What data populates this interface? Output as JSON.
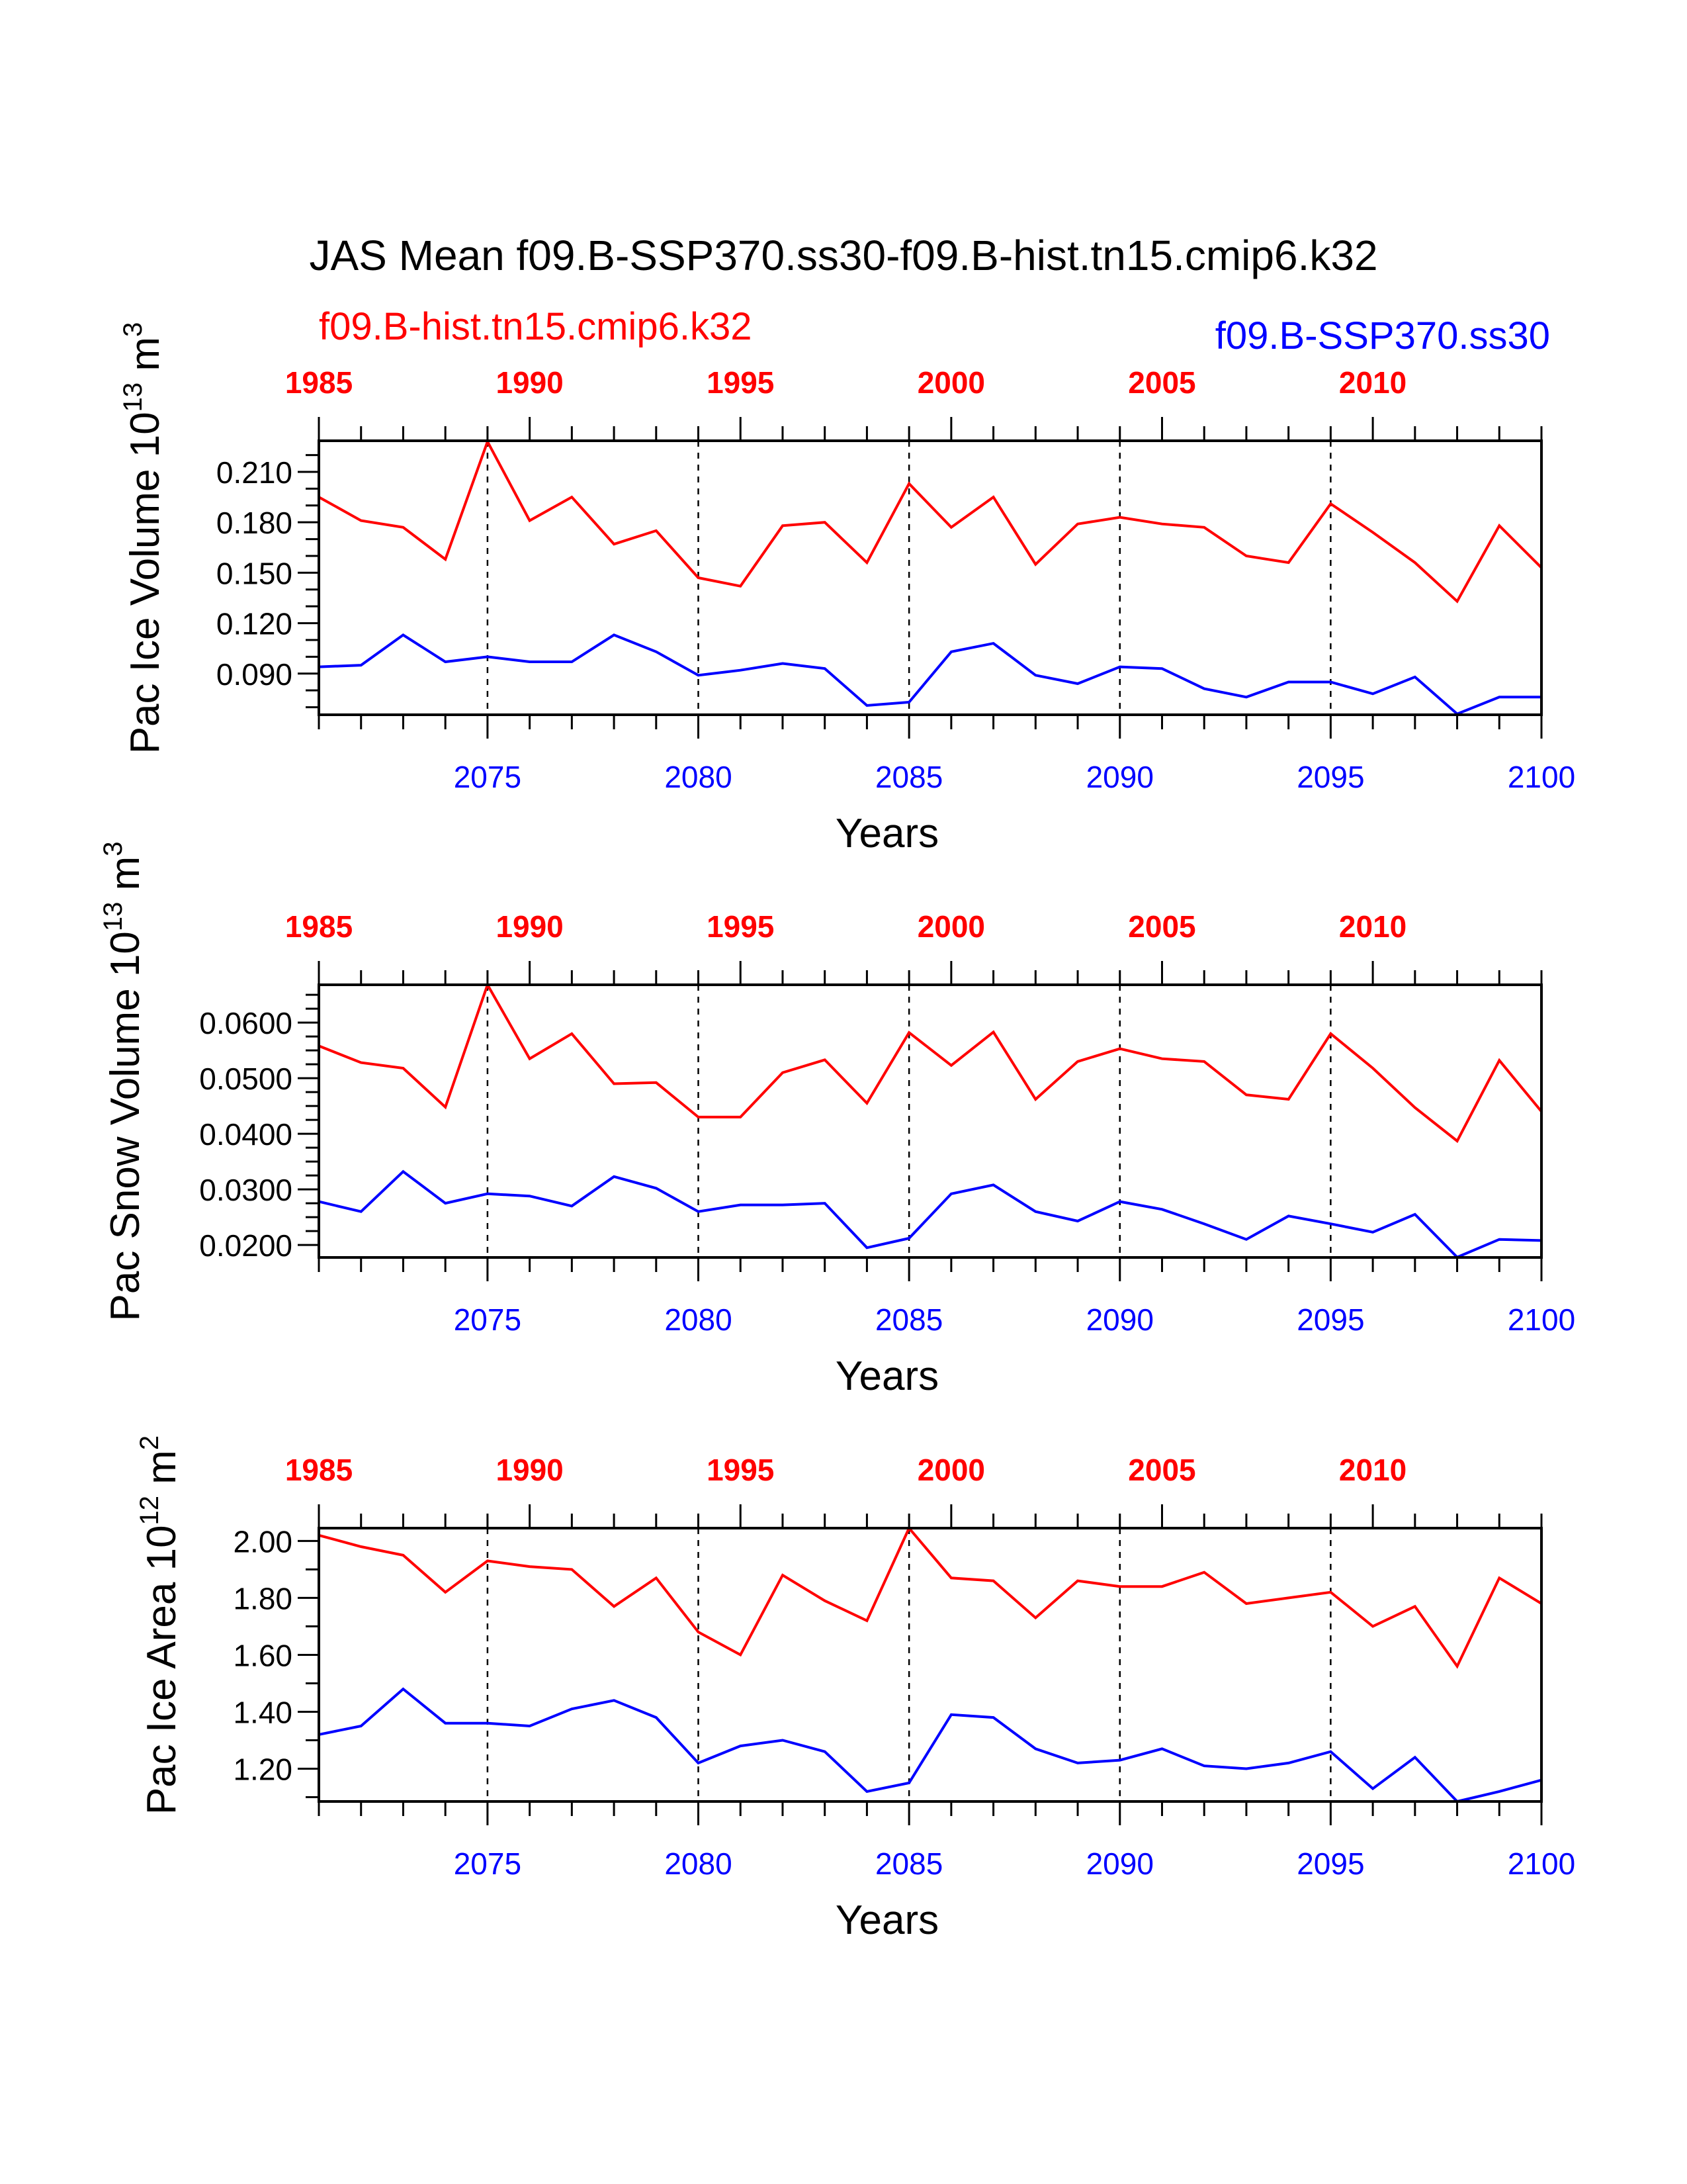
{
  "title": "JAS Mean f09.B-SSP370.ss30-f09.B-hist.tn15.cmip6.k32",
  "legend": {
    "hist_label": "f09.B-hist.tn15.cmip6.k32",
    "ssp_label": "f09.B-SSP370.ss30"
  },
  "colors": {
    "hist": "#ff0000",
    "ssp": "#0000ff",
    "axis": "#000000"
  },
  "chart_data": [
    {
      "type": "line",
      "ylabel": "Pac Ice Volume 10",
      "ylabel_exp": "13",
      "ylabel_unit": " m",
      "ylabel_unit_exp": "3",
      "xlabel": "Years",
      "xlim": [
        2071,
        2100
      ],
      "ylim": [
        0.0655,
        0.2285
      ],
      "yticks": [
        0.09,
        0.12,
        0.15,
        0.18,
        0.21
      ],
      "ytick_labels": [
        "0.090",
        "0.120",
        "0.150",
        "0.180",
        "0.210"
      ],
      "yminor": [
        0.07,
        0.08,
        0.1,
        0.11,
        0.13,
        0.14,
        0.16,
        0.17,
        0.19,
        0.2,
        0.22
      ],
      "bottom_ticks": [
        2075,
        2080,
        2085,
        2090,
        2095,
        2100
      ],
      "bottom_tick_labels": [
        "2075",
        "2080",
        "2085",
        "2090",
        "2095",
        "2100"
      ],
      "top_ticks": [
        1985,
        1990,
        1995,
        2000,
        2005,
        2010
      ],
      "top_tick_labels": [
        "1985",
        "1990",
        "1995",
        "2000",
        "2005",
        "2010"
      ],
      "top_offset": 86,
      "grid_x": [
        2075,
        2080,
        2085,
        2090,
        2095
      ],
      "x": [
        2071,
        2072,
        2073,
        2074,
        2075,
        2076,
        2077,
        2078,
        2079,
        2080,
        2081,
        2082,
        2083,
        2084,
        2085,
        2086,
        2087,
        2088,
        2089,
        2090,
        2091,
        2092,
        2093,
        2094,
        2095,
        2096,
        2097,
        2098,
        2099,
        2100
      ],
      "series": [
        {
          "key": "hist",
          "values": [
            0.195,
            0.181,
            0.177,
            0.158,
            0.228,
            0.181,
            0.195,
            0.167,
            0.175,
            0.147,
            0.142,
            0.178,
            0.18,
            0.156,
            0.203,
            0.177,
            0.195,
            0.155,
            0.179,
            0.183,
            0.179,
            0.177,
            0.16,
            0.156,
            0.191,
            0.174,
            0.156,
            0.133,
            0.178,
            0.153
          ]
        },
        {
          "key": "ssp",
          "values": [
            0.094,
            0.095,
            0.113,
            0.097,
            0.1,
            0.097,
            0.097,
            0.113,
            0.103,
            0.089,
            0.092,
            0.096,
            0.093,
            0.071,
            0.073,
            0.103,
            0.108,
            0.089,
            0.084,
            0.094,
            0.093,
            0.081,
            0.076,
            0.085,
            0.085,
            0.078,
            0.088,
            0.066,
            0.076,
            0.076
          ]
        }
      ]
    },
    {
      "type": "line",
      "ylabel": "Pac Snow Volume 10",
      "ylabel_exp": "13",
      "ylabel_unit": " m",
      "ylabel_unit_exp": "3",
      "xlabel": "Years",
      "xlim": [
        2071,
        2100
      ],
      "ylim": [
        0.01775,
        0.0668
      ],
      "yticks": [
        0.02,
        0.03,
        0.04,
        0.05,
        0.06
      ],
      "ytick_labels": [
        "0.0200",
        "0.0300",
        "0.0400",
        "0.0500",
        "0.0600"
      ],
      "yminor": [
        0.0225,
        0.025,
        0.0275,
        0.0325,
        0.035,
        0.0375,
        0.0425,
        0.045,
        0.0475,
        0.0525,
        0.055,
        0.0575,
        0.0625,
        0.065
      ],
      "bottom_ticks": [
        2075,
        2080,
        2085,
        2090,
        2095,
        2100
      ],
      "bottom_tick_labels": [
        "2075",
        "2080",
        "2085",
        "2090",
        "2095",
        "2100"
      ],
      "top_ticks": [
        1985,
        1990,
        1995,
        2000,
        2005,
        2010
      ],
      "top_tick_labels": [
        "1985",
        "1990",
        "1995",
        "2000",
        "2005",
        "2010"
      ],
      "top_offset": 86,
      "grid_x": [
        2075,
        2080,
        2085,
        2090,
        2095
      ],
      "x": [
        2071,
        2072,
        2073,
        2074,
        2075,
        2076,
        2077,
        2078,
        2079,
        2080,
        2081,
        2082,
        2083,
        2084,
        2085,
        2086,
        2087,
        2088,
        2089,
        2090,
        2091,
        2092,
        2093,
        2094,
        2095,
        2096,
        2097,
        2098,
        2099,
        2100
      ],
      "series": [
        {
          "key": "hist",
          "values": [
            0.0558,
            0.0528,
            0.0518,
            0.0448,
            0.0668,
            0.0535,
            0.058,
            0.049,
            0.0492,
            0.043,
            0.043,
            0.051,
            0.0533,
            0.0455,
            0.0582,
            0.0523,
            0.0583,
            0.0462,
            0.053,
            0.0553,
            0.0535,
            0.053,
            0.047,
            0.0462,
            0.058,
            0.0518,
            0.0447,
            0.0387,
            0.0532,
            0.044
          ]
        },
        {
          "key": "ssp",
          "values": [
            0.0278,
            0.026,
            0.0332,
            0.0275,
            0.0292,
            0.0288,
            0.027,
            0.0323,
            0.0302,
            0.026,
            0.0272,
            0.0272,
            0.0275,
            0.0195,
            0.0212,
            0.0292,
            0.0308,
            0.026,
            0.0243,
            0.0278,
            0.0264,
            0.0238,
            0.021,
            0.0252,
            0.0238,
            0.0223,
            0.0255,
            0.0178,
            0.021,
            0.0208
          ]
        }
      ]
    },
    {
      "type": "line",
      "ylabel": "Pac Ice Area 10",
      "ylabel_exp": "12",
      "ylabel_unit": " m",
      "ylabel_unit_exp": "2",
      "xlabel": "Years",
      "xlim": [
        2071,
        2100
      ],
      "ylim": [
        1.085,
        2.045
      ],
      "yticks": [
        1.2,
        1.4,
        1.6,
        1.8,
        2.0
      ],
      "ytick_labels": [
        "1.20",
        "1.40",
        "1.60",
        "1.80",
        "2.00"
      ],
      "yminor": [
        1.1,
        1.3,
        1.5,
        1.7,
        1.9
      ],
      "bottom_ticks": [
        2075,
        2080,
        2085,
        2090,
        2095,
        2100
      ],
      "bottom_tick_labels": [
        "2075",
        "2080",
        "2085",
        "2090",
        "2095",
        "2100"
      ],
      "top_ticks": [
        1985,
        1990,
        1995,
        2000,
        2005,
        2010
      ],
      "top_tick_labels": [
        "1985",
        "1990",
        "1995",
        "2000",
        "2005",
        "2010"
      ],
      "top_offset": 86,
      "grid_x": [
        2075,
        2080,
        2085,
        2090,
        2095
      ],
      "x": [
        2071,
        2072,
        2073,
        2074,
        2075,
        2076,
        2077,
        2078,
        2079,
        2080,
        2081,
        2082,
        2083,
        2084,
        2085,
        2086,
        2087,
        2088,
        2089,
        2090,
        2091,
        2092,
        2093,
        2094,
        2095,
        2096,
        2097,
        2098,
        2099,
        2100
      ],
      "series": [
        {
          "key": "hist",
          "values": [
            2.02,
            1.98,
            1.95,
            1.82,
            1.93,
            1.91,
            1.9,
            1.77,
            1.87,
            1.68,
            1.6,
            1.88,
            1.79,
            1.72,
            2.045,
            1.87,
            1.86,
            1.73,
            1.86,
            1.84,
            1.84,
            1.89,
            1.78,
            1.8,
            1.82,
            1.7,
            1.77,
            1.56,
            1.87,
            1.78
          ]
        },
        {
          "key": "ssp",
          "values": [
            1.32,
            1.35,
            1.48,
            1.36,
            1.36,
            1.35,
            1.41,
            1.44,
            1.38,
            1.22,
            1.28,
            1.3,
            1.26,
            1.12,
            1.15,
            1.39,
            1.38,
            1.27,
            1.22,
            1.23,
            1.27,
            1.21,
            1.2,
            1.22,
            1.26,
            1.13,
            1.24,
            1.085,
            1.12,
            1.16
          ]
        }
      ]
    }
  ]
}
